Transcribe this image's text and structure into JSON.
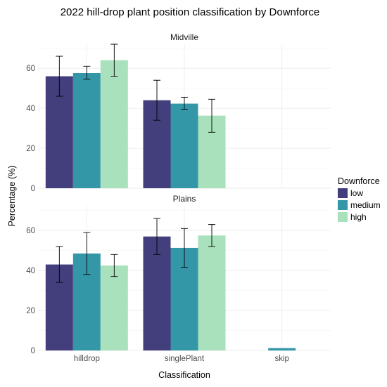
{
  "chart_data": {
    "type": "bar",
    "title": "2022 hill-drop plant position classification by Downforce",
    "xlabel": "Classification",
    "ylabel": "Percentage (%)",
    "categories": [
      "hilldrop",
      "singlePlant",
      "skip"
    ],
    "ylim": [
      0,
      72
    ],
    "yticks": [
      0,
      20,
      40,
      60
    ],
    "grid": true,
    "legend": {
      "title": "Downforce",
      "position": "right",
      "entries": [
        "low",
        "medium",
        "high"
      ]
    },
    "colors": {
      "low": "#433e7c",
      "medium": "#3497a8",
      "high": "#a8e1bb"
    },
    "facets": [
      {
        "label": "Midville",
        "series": [
          {
            "name": "low",
            "values": [
              56,
              44,
              null
            ],
            "err_low": [
              46,
              34,
              null
            ],
            "err_high": [
              66,
              54,
              null
            ]
          },
          {
            "name": "medium",
            "values": [
              57.6,
              42.3,
              null
            ],
            "err_low": [
              54.5,
              39.5,
              null
            ],
            "err_high": [
              61,
              45.5,
              null
            ]
          },
          {
            "name": "high",
            "values": [
              64,
              36.3,
              null
            ],
            "err_low": [
              56,
              28,
              null
            ],
            "err_high": [
              72,
              44.5,
              null
            ]
          }
        ]
      },
      {
        "label": "Plains",
        "series": [
          {
            "name": "low",
            "values": [
              43,
              57,
              null
            ],
            "err_low": [
              34,
              48,
              null
            ],
            "err_high": [
              52,
              66,
              null
            ]
          },
          {
            "name": "medium",
            "values": [
              48.5,
              51.3,
              1.2
            ],
            "err_low": [
              38,
              41.5,
              null
            ],
            "err_high": [
              59,
              61,
              null
            ]
          },
          {
            "name": "high",
            "values": [
              42.5,
              57.5,
              null
            ],
            "err_low": [
              37,
              52,
              null
            ],
            "err_high": [
              48,
              63,
              null
            ]
          }
        ]
      }
    ]
  }
}
